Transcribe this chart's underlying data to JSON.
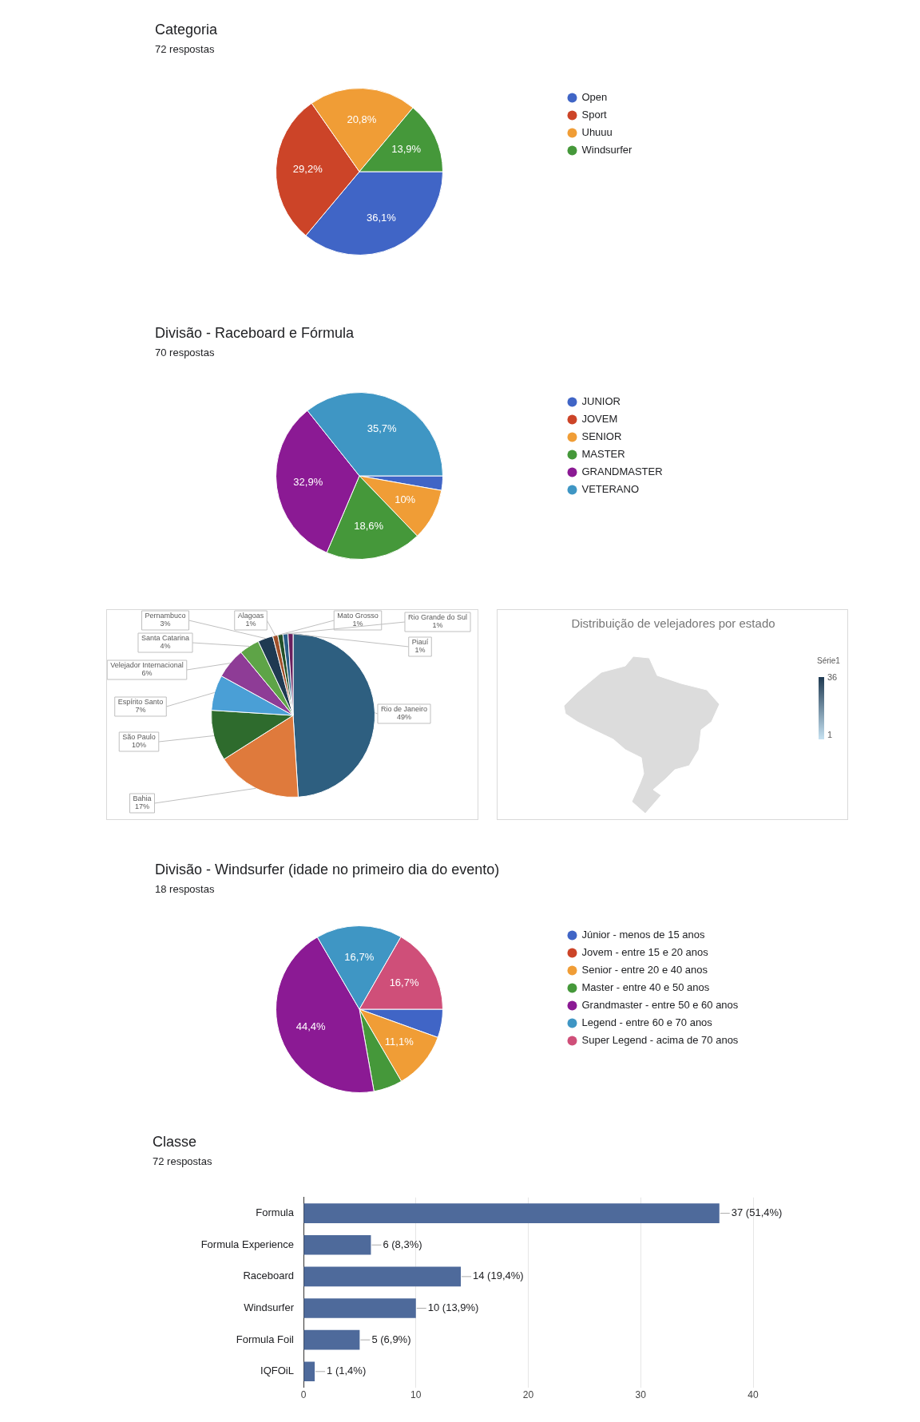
{
  "chart_data": [
    {
      "type": "pie",
      "title": "Categoria",
      "subtitle": "72 respostas",
      "categories": [
        "Open",
        "Sport",
        "Uhuuu",
        "Windsurfer"
      ],
      "values": [
        36.1,
        29.2,
        20.8,
        13.9
      ],
      "colors": [
        "#4065c6",
        "#cc4428",
        "#f09d36",
        "#45983a"
      ],
      "value_labels": [
        "36,1%",
        "29,2%",
        "20,8%",
        "13,9%"
      ],
      "legend": "right"
    },
    {
      "type": "pie",
      "title": "Divisão - Raceboard e Fórmula",
      "subtitle": "70 respostas",
      "categories": [
        "JUNIOR",
        "JOVEM",
        "SENIOR",
        "MASTER",
        "GRANDMASTER",
        "VETERANO"
      ],
      "values": [
        2.8,
        0,
        10,
        18.6,
        32.9,
        35.7
      ],
      "colors": [
        "#4065c6",
        "#cc4428",
        "#f09d36",
        "#45983a",
        "#8b1a94",
        "#3f96c4"
      ],
      "value_labels": [
        null,
        null,
        "10%",
        "18,6%",
        "32,9%",
        "35,7%"
      ],
      "legend": "right"
    },
    {
      "type": "pie",
      "categories": [
        "Rio de Janeiro",
        "Bahia",
        "São Paulo",
        "Espírito Santo",
        "Velejador Internacional",
        "Santa Catarina",
        "Pernambuco",
        "Alagoas",
        "Mato Grosso",
        "Rio Grande do Sul",
        "Piauí"
      ],
      "values": [
        49,
        17,
        10,
        7,
        6,
        4,
        3,
        1,
        1,
        1,
        1
      ],
      "colors": [
        "#2e5f80",
        "#df7a3c",
        "#2e6b2d",
        "#4a9fd6",
        "#8e3c96",
        "#5ea447",
        "#1f3a52",
        "#a0502a",
        "#24512a",
        "#2a5e88",
        "#6b1f5e"
      ],
      "value_labels": [
        "49%",
        "17%",
        "10%",
        "7%",
        "6%",
        "4%",
        "3%",
        "1%",
        "1%",
        "1%",
        "1%"
      ]
    },
    {
      "type": "other",
      "title": "Distribuição de velejadores por estado",
      "legend_title": "Série1",
      "annotations": [
        "36",
        "1"
      ]
    },
    {
      "type": "pie",
      "title": "Divisão - Windsurfer (idade no primeiro dia do evento)",
      "subtitle": "18 respostas",
      "categories": [
        "Júnior - menos de 15 anos",
        "Jovem - entre 15 e 20 anos",
        "Senior - entre 20 e 40 anos",
        "Master - entre 40 e 50 anos",
        "Grandmaster - entre 50 e 60 anos",
        "Legend - entre 60 e 70 anos",
        "Super Legend - acima de 70 anos"
      ],
      "values": [
        5.5,
        0,
        11.1,
        5.6,
        44.4,
        16.7,
        16.7
      ],
      "colors": [
        "#4065c6",
        "#cc4428",
        "#f09d36",
        "#45983a",
        "#8b1a94",
        "#3f96c4",
        "#cf4f79"
      ],
      "value_labels": [
        null,
        null,
        "11,1%",
        null,
        "44,4%",
        "16,7%",
        "16,7%"
      ],
      "legend": "right"
    },
    {
      "type": "bar",
      "orientation": "horizontal",
      "title": "Classe",
      "subtitle": "72 respostas",
      "categories": [
        "Formula",
        "Formula Experience",
        "Raceboard",
        "Windsurfer",
        "Formula Foil",
        "IQFOiL"
      ],
      "values": [
        37,
        6,
        14,
        10,
        5,
        1
      ],
      "color": "#4e6a9b",
      "value_labels": [
        "37 (51,4%)",
        "6 (8,3%)",
        "14 (19,4%)",
        "10 (13,9%)",
        "5 (6,9%)",
        "1 (1,4%)"
      ],
      "xlim": [
        0,
        40
      ],
      "xticks": [
        0,
        10,
        20,
        30,
        40
      ],
      "grid": "x"
    }
  ]
}
